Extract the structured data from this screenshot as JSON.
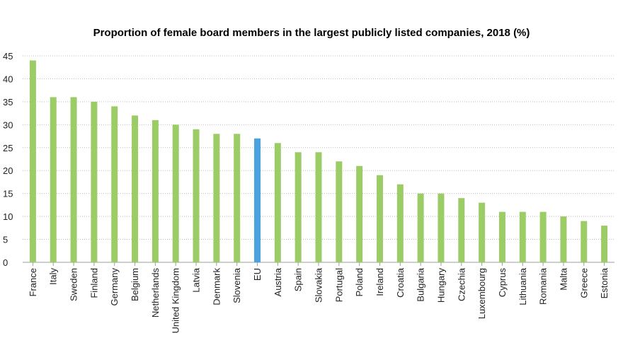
{
  "chart_data": {
    "type": "bar",
    "title": "Proportion of female board members in the largest publicly listed companies, 2018 (%)",
    "xlabel": "",
    "ylabel": "",
    "ylim": [
      0,
      45
    ],
    "yticks": [
      0,
      5,
      10,
      15,
      20,
      25,
      30,
      35,
      40,
      45
    ],
    "grid": true,
    "categories": [
      "France",
      "Italy",
      "Sweden",
      "Finland",
      "Germany",
      "Belgium",
      "Netherlands",
      "United Kingdom",
      "Latvia",
      "Denmark",
      "Slovenia",
      "EU",
      "Austria",
      "Spain",
      "Slovakia",
      "Portugal",
      "Poland",
      "Ireland",
      "Croatia",
      "Bulgaria",
      "Hungary",
      "Czechia",
      "Luxembourg",
      "Cyprus",
      "Lithuania",
      "Romania",
      "Malta",
      "Greece",
      "Estonia"
    ],
    "values": [
      44,
      36,
      36,
      35,
      34,
      32,
      31,
      30,
      29,
      28,
      28,
      27,
      26,
      24,
      24,
      22,
      21,
      19,
      17,
      15,
      15,
      14,
      13,
      11,
      11,
      11,
      10,
      9,
      8
    ],
    "highlight_category": "EU",
    "colors": {
      "bar": "#9ccc65",
      "highlight": "#4aa3df"
    }
  }
}
